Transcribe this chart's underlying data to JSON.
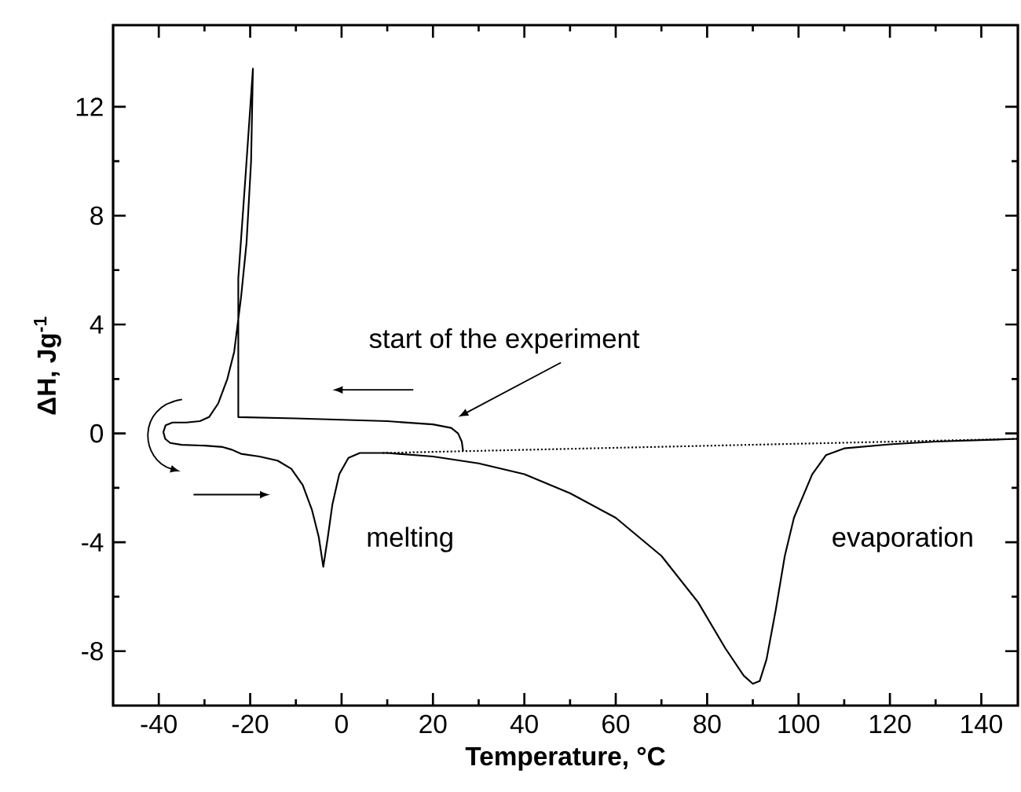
{
  "chart_data": {
    "type": "line",
    "xlabel": "Temperature, °C",
    "ylabel": "ΔH, Jg$^{-1}$",
    "xlim": [
      -50,
      148
    ],
    "ylim": [
      -10,
      15
    ],
    "xticks": [
      -40,
      -20,
      0,
      20,
      40,
      60,
      80,
      100,
      120,
      140
    ],
    "yticks": [
      -8,
      -4,
      0,
      4,
      8,
      12
    ],
    "series": [
      {
        "color": "#000000",
        "line_style": "solid",
        "x": [
          26.6,
          26.3,
          25.5,
          24,
          20,
          10,
          0,
          -10,
          -22.6,
          -22.6,
          -21,
          -19.4,
          -19.8,
          -20.8,
          -22,
          -23.5,
          -25,
          -27,
          -29,
          -31,
          -34,
          -37,
          -38.5,
          -39,
          -38.6,
          -37.5,
          -35,
          -30,
          -26,
          -24,
          -22,
          -18,
          -14,
          -11,
          -8.5,
          -6.5,
          -5,
          -4,
          -3,
          -2,
          -0.5,
          1.5,
          4,
          10,
          20,
          30,
          40,
          50,
          60,
          70,
          78,
          84,
          88,
          90,
          91.5,
          93,
          95,
          97,
          99,
          101,
          103,
          106,
          110,
          120,
          130,
          148
        ],
        "values": [
          -0.65,
          -0.3,
          0.0,
          0.2,
          0.33,
          0.45,
          0.5,
          0.55,
          0.6,
          5.7,
          9.5,
          13.4,
          10,
          7,
          5,
          3,
          2,
          1.1,
          0.6,
          0.45,
          0.4,
          0.4,
          0.3,
          0.05,
          -0.2,
          -0.35,
          -0.42,
          -0.45,
          -0.5,
          -0.6,
          -0.75,
          -0.85,
          -1.0,
          -1.3,
          -1.9,
          -2.8,
          -3.8,
          -4.9,
          -3.8,
          -2.6,
          -1.5,
          -0.9,
          -0.72,
          -0.72,
          -0.85,
          -1.1,
          -1.5,
          -2.2,
          -3.1,
          -4.5,
          -6.2,
          -7.9,
          -8.9,
          -9.2,
          -9.1,
          -8.3,
          -6.5,
          -4.5,
          -3.1,
          -2.3,
          -1.5,
          -0.8,
          -0.55,
          -0.4,
          -0.3,
          -0.2
        ]
      },
      {
        "color": "#000000",
        "line_style": "dotted",
        "x": [
          9,
          148
        ],
        "values": [
          -0.72,
          -0.2
        ]
      }
    ],
    "annotations": [
      "start of the experiment",
      "melting",
      "evaporation"
    ]
  }
}
